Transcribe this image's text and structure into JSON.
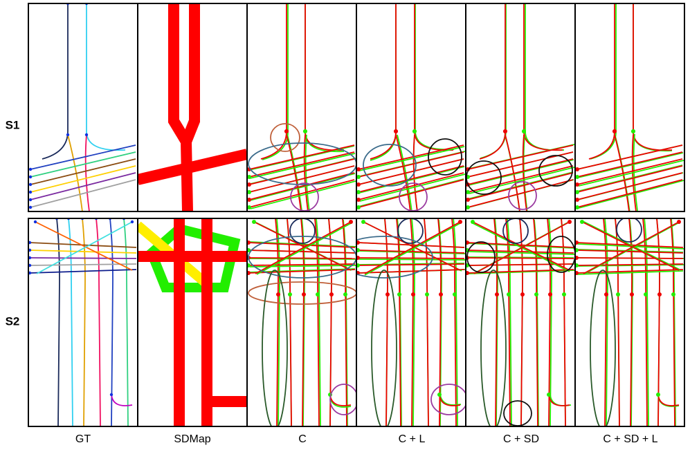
{
  "row_labels": [
    "S1",
    "S2"
  ],
  "column_labels": [
    "GT",
    "SDMap",
    "C",
    "C + L",
    "C + SD",
    "C + SD + L"
  ]
}
